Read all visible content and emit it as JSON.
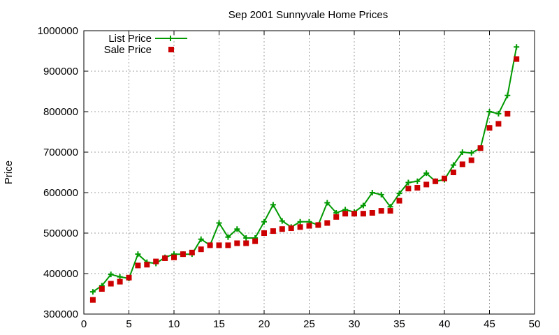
{
  "chart_data": {
    "type": "line",
    "title": "Sep 2001 Sunnyvale Home Prices",
    "xlabel": "",
    "ylabel": "Price",
    "xlim": [
      0,
      50
    ],
    "ylim": [
      300000,
      1000000
    ],
    "xticks": [
      0,
      5,
      10,
      15,
      20,
      25,
      30,
      35,
      40,
      45,
      50
    ],
    "yticks": [
      300000,
      400000,
      500000,
      600000,
      700000,
      800000,
      900000,
      1000000
    ],
    "grid": true,
    "legend_position": "top-left",
    "x": [
      1,
      2,
      3,
      4,
      5,
      6,
      7,
      8,
      9,
      10,
      11,
      12,
      13,
      14,
      15,
      16,
      17,
      18,
      19,
      20,
      21,
      22,
      23,
      24,
      25,
      26,
      27,
      28,
      29,
      30,
      31,
      32,
      33,
      34,
      35,
      36,
      37,
      38,
      39,
      40,
      41,
      42,
      43,
      44,
      45,
      46,
      47,
      48
    ],
    "series": [
      {
        "name": "List Price",
        "style": "line-plus",
        "color": "#009900",
        "values": [
          355000,
          370000,
          398000,
          392000,
          388000,
          448000,
          428000,
          425000,
          440000,
          448000,
          448000,
          448000,
          485000,
          470000,
          525000,
          490000,
          510000,
          488000,
          488000,
          528000,
          570000,
          530000,
          515000,
          528000,
          528000,
          520000,
          575000,
          550000,
          558000,
          552000,
          568000,
          600000,
          595000,
          565000,
          598000,
          625000,
          628000,
          648000,
          628000,
          632000,
          668000,
          700000,
          698000,
          710000,
          800000,
          795000,
          840000,
          960000
        ]
      },
      {
        "name": "Sale Price",
        "style": "square",
        "color": "#cc0000",
        "values": [
          335000,
          362000,
          375000,
          380000,
          390000,
          420000,
          422000,
          430000,
          438000,
          440000,
          448000,
          452000,
          460000,
          470000,
          470000,
          470000,
          475000,
          475000,
          480000,
          500000,
          505000,
          510000,
          512000,
          515000,
          518000,
          520000,
          525000,
          540000,
          548000,
          548000,
          548000,
          550000,
          555000,
          555000,
          580000,
          610000,
          612000,
          620000,
          628000,
          635000,
          650000,
          670000,
          680000,
          710000,
          760000,
          770000,
          795000,
          930000
        ]
      }
    ]
  }
}
